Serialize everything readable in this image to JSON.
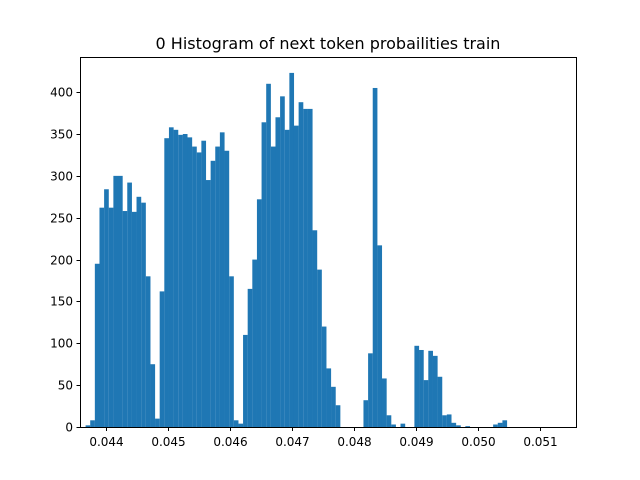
{
  "chart_data": {
    "type": "bar",
    "title": "0 Histogram of next token probailities train",
    "xlabel": "",
    "ylabel": "",
    "bar_color": "#1f77b4",
    "xlim": [
      0.04358,
      0.05158
    ],
    "ylim": [
      0,
      442
    ],
    "bin_start": 0.04367,
    "bin_width": 7.47e-05,
    "grid": false,
    "legend": "none",
    "x_ticks": [
      {
        "value": 0.044,
        "label": "0.044"
      },
      {
        "value": 0.045,
        "label": "0.045"
      },
      {
        "value": 0.046,
        "label": "0.046"
      },
      {
        "value": 0.047,
        "label": "0.047"
      },
      {
        "value": 0.048,
        "label": "0.048"
      },
      {
        "value": 0.049,
        "label": "0.049"
      },
      {
        "value": 0.05,
        "label": "0.050"
      },
      {
        "value": 0.051,
        "label": "0.051"
      }
    ],
    "y_ticks": [
      {
        "value": 0,
        "label": "0"
      },
      {
        "value": 50,
        "label": "50"
      },
      {
        "value": 100,
        "label": "100"
      },
      {
        "value": 150,
        "label": "150"
      },
      {
        "value": 200,
        "label": "200"
      },
      {
        "value": 250,
        "label": "250"
      },
      {
        "value": 300,
        "label": "300"
      },
      {
        "value": 350,
        "label": "350"
      },
      {
        "value": 400,
        "label": "400"
      }
    ],
    "values": [
      2,
      8,
      195,
      262,
      284,
      262,
      300,
      300,
      258,
      292,
      257,
      275,
      268,
      180,
      75,
      10,
      162,
      345,
      358,
      355,
      349,
      350,
      346,
      335,
      328,
      342,
      295,
      318,
      335,
      352,
      330,
      180,
      8,
      4,
      110,
      165,
      200,
      272,
      364,
      410,
      335,
      370,
      395,
      355,
      423,
      360,
      388,
      380,
      380,
      235,
      188,
      120,
      70,
      48,
      26,
      0,
      0,
      0,
      0,
      0,
      32,
      88,
      405,
      217,
      58,
      14,
      3,
      0,
      4,
      0,
      0,
      97,
      92,
      56,
      91,
      85,
      60,
      14,
      15,
      5,
      2,
      0,
      1,
      0,
      0,
      0,
      0,
      0,
      3,
      5,
      8,
      0
    ]
  }
}
